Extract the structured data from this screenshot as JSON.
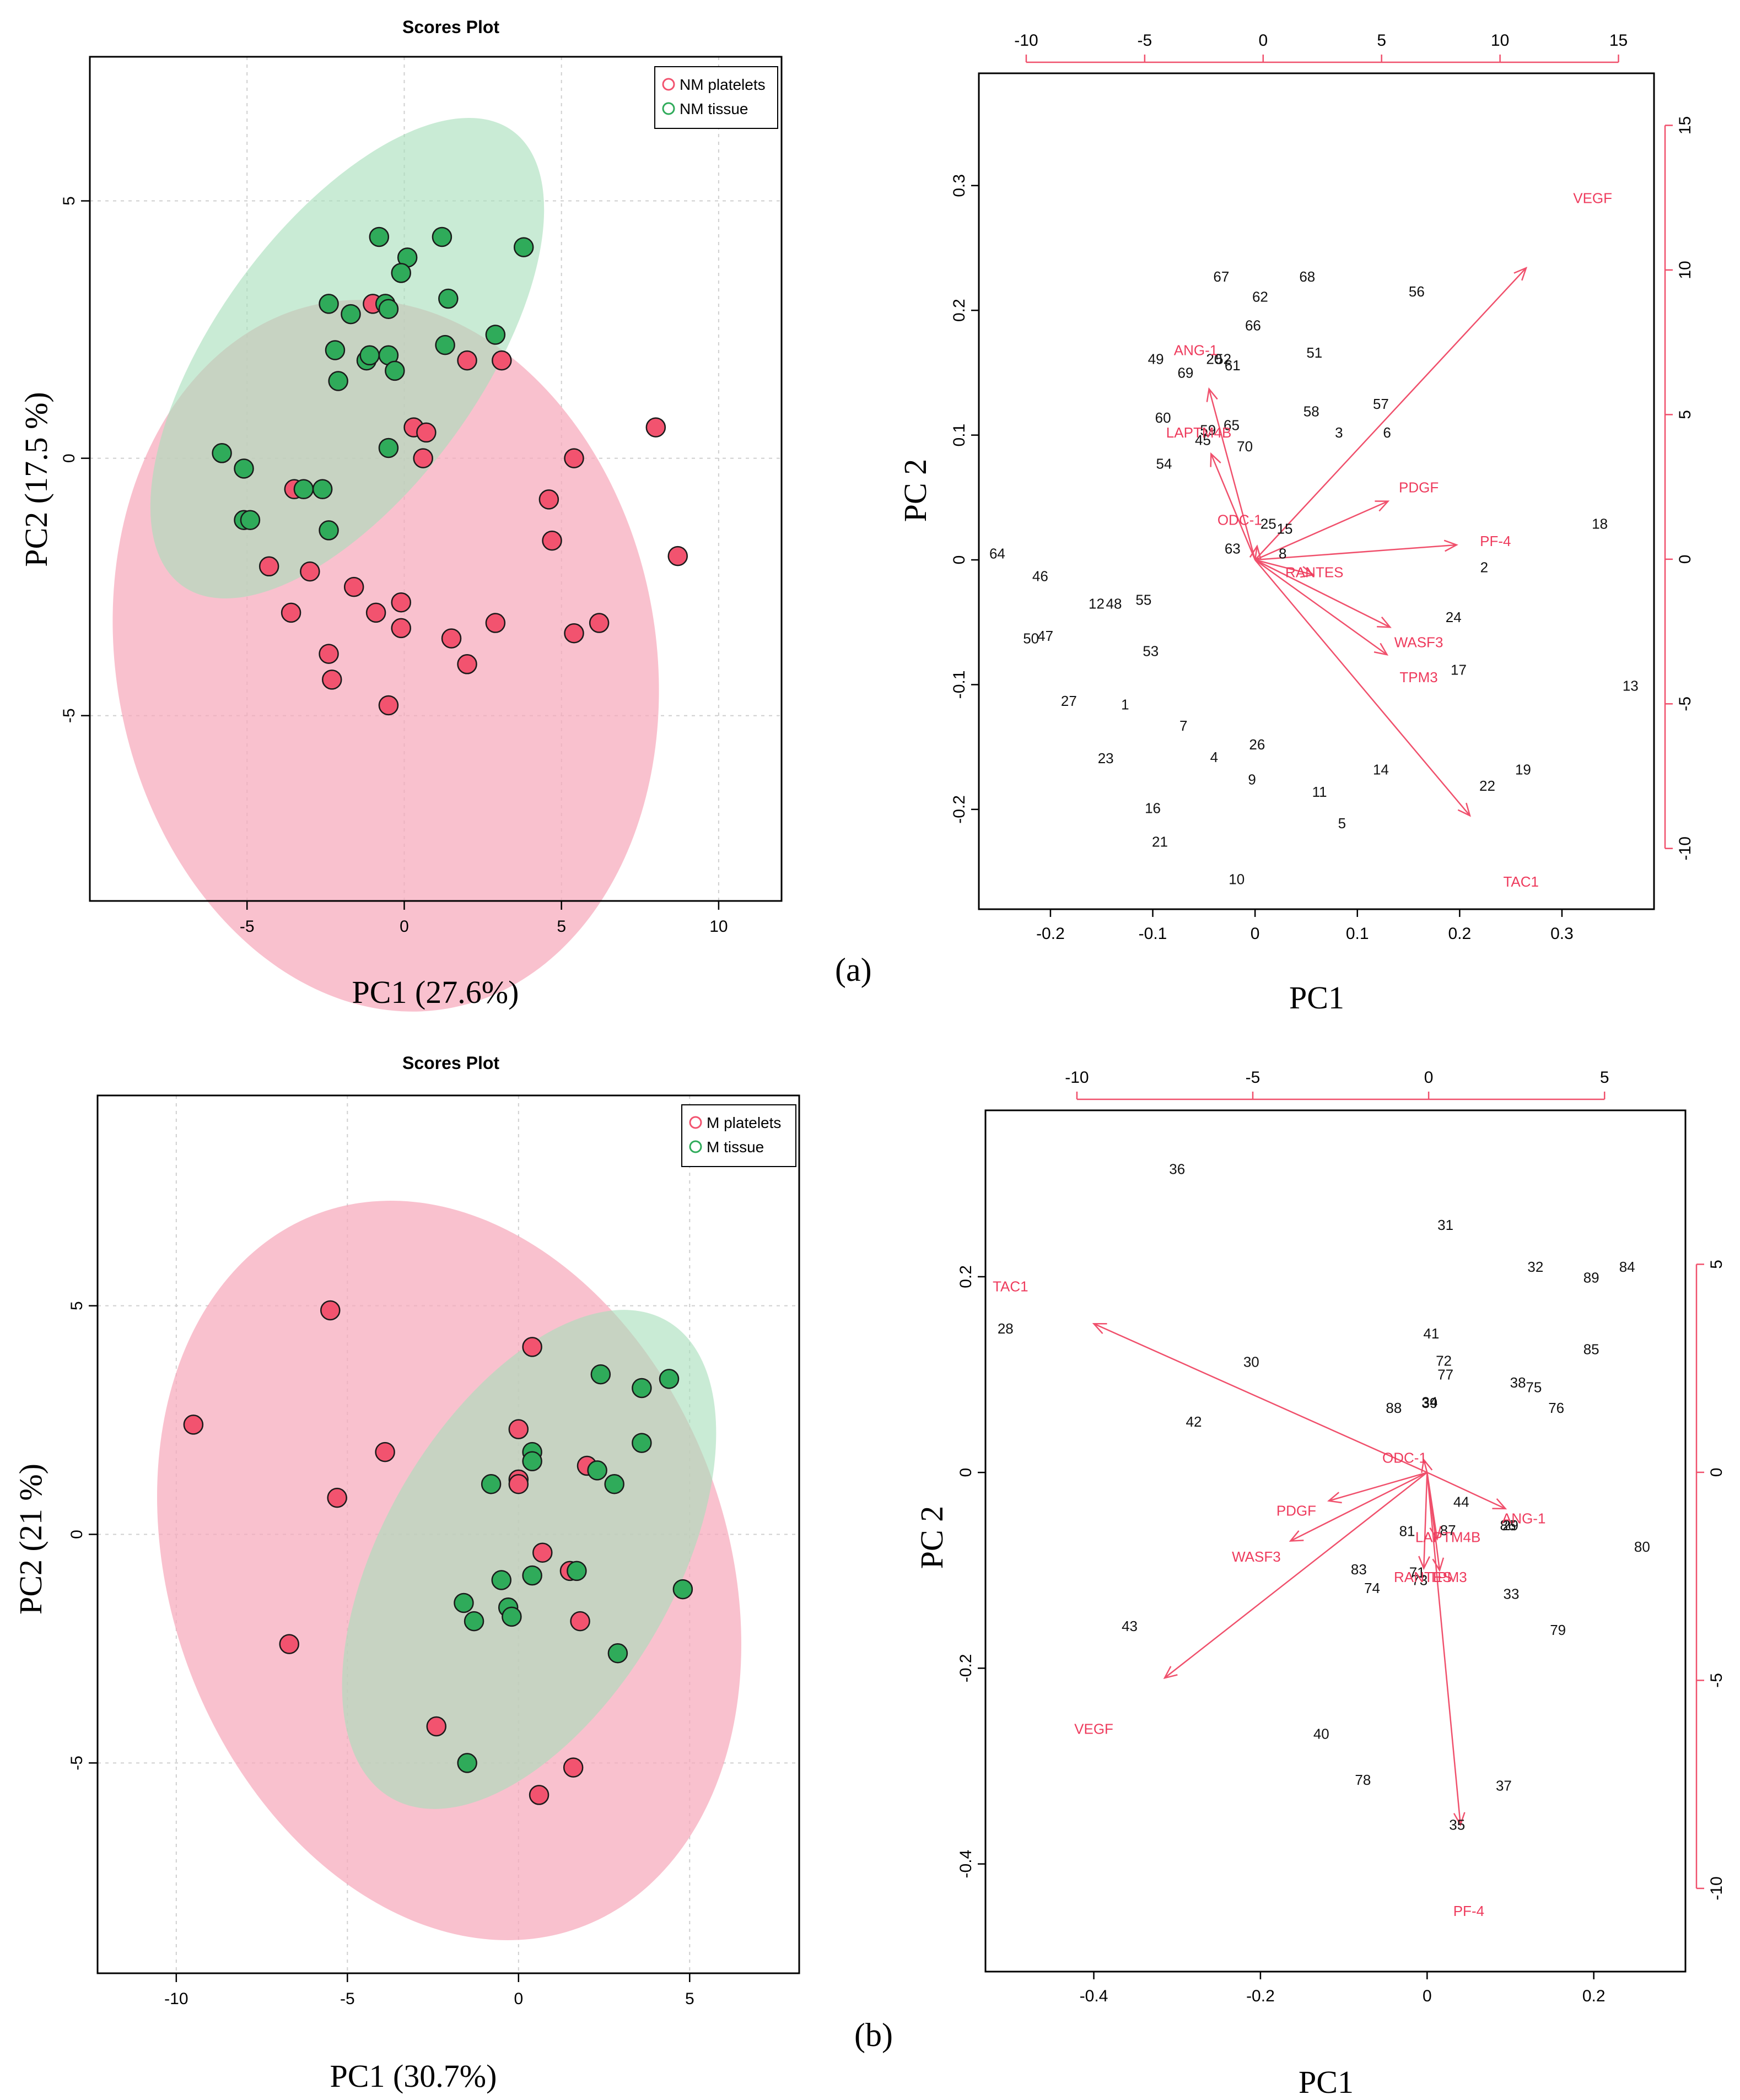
{
  "colors": {
    "platelets": "#f2536f",
    "tissue": "#2fab5a",
    "platelets_ellipse": "#f7a9bb",
    "tissue_ellipse": "#a8dfbb",
    "overlap": "#c9b6a6",
    "vector": "#f0506c"
  },
  "panel_labels": [
    "(a)",
    "(b)"
  ],
  "chart_data": [
    {
      "type": "scatter",
      "name": "scores-a",
      "title": "Scores Plot",
      "xlabel": "PC1 (27.6%)",
      "ylabel": "PC2 (17.5 %)",
      "xlim": [
        -10,
        12
      ],
      "ylim": [
        -8.6,
        7.8
      ],
      "xticks": [
        -5,
        0,
        5,
        10
      ],
      "yticks": [
        -5,
        0,
        5
      ],
      "grid": true,
      "legend_position": "top-right",
      "series": [
        {
          "name": "NM platelets",
          "color": "#f2536f",
          "points": [
            [
              -1,
              3
            ],
            [
              0.3,
              0.6
            ],
            [
              0.7,
              0.5
            ],
            [
              0.6,
              0
            ],
            [
              2,
              1.9
            ],
            [
              3.1,
              1.9
            ],
            [
              8,
              0.6
            ],
            [
              5.4,
              0
            ],
            [
              4.6,
              -0.8
            ],
            [
              4.7,
              -1.6
            ],
            [
              -3.5,
              -0.6
            ],
            [
              -4.3,
              -2.1
            ],
            [
              -3.6,
              -3
            ],
            [
              -3,
              -2.2
            ],
            [
              -1.6,
              -2.5
            ],
            [
              -0.1,
              -2.8
            ],
            [
              -0.9,
              -3
            ],
            [
              -0.1,
              -3.3
            ],
            [
              1.5,
              -3.5
            ],
            [
              2,
              -4
            ],
            [
              2.9,
              -3.2
            ],
            [
              5.4,
              -3.4
            ],
            [
              6.2,
              -3.2
            ],
            [
              8.7,
              -1.9
            ],
            [
              -2.4,
              -3.8
            ],
            [
              -2.3,
              -4.3
            ],
            [
              -0.5,
              -4.8
            ]
          ]
        },
        {
          "name": "NM tissue",
          "color": "#2fab5a",
          "points": [
            [
              -0.8,
              4.3
            ],
            [
              0.1,
              3.9
            ],
            [
              1.2,
              4.3
            ],
            [
              3.8,
              4.1
            ],
            [
              -0.1,
              3.6
            ],
            [
              -2.4,
              3
            ],
            [
              -1.7,
              2.8
            ],
            [
              -0.6,
              3
            ],
            [
              -0.5,
              2.9
            ],
            [
              1.4,
              3.1
            ],
            [
              -2.2,
              2.1
            ],
            [
              -1.2,
              1.9
            ],
            [
              -1.1,
              2
            ],
            [
              -0.5,
              2
            ],
            [
              -0.3,
              1.7
            ],
            [
              1.3,
              2.2
            ],
            [
              2.9,
              2.4
            ],
            [
              -2.1,
              1.5
            ],
            [
              -0.5,
              0.2
            ],
            [
              -5.8,
              0.1
            ],
            [
              -5.1,
              -0.2
            ],
            [
              -5.1,
              -1.2
            ],
            [
              -4.9,
              -1.2
            ],
            [
              -3.2,
              -0.6
            ],
            [
              -2.6,
              -0.6
            ],
            [
              -2.4,
              -1.4
            ]
          ]
        }
      ],
      "ellipses": [
        "NM platelets",
        "NM tissue"
      ]
    },
    {
      "type": "scatter",
      "name": "biplot-a",
      "title": "",
      "xlabel": "PC1",
      "ylabel": "PC 2",
      "xlim": [
        -0.27,
        0.39
      ],
      "ylim": [
        -0.28,
        0.39
      ],
      "xticks": [
        -0.2,
        -0.1,
        0.0,
        0.1,
        0.2,
        0.3
      ],
      "yticks": [
        -0.2,
        -0.1,
        0.0,
        0.1,
        0.2,
        0.3
      ],
      "top_xlim": [
        -12,
        16.5
      ],
      "top_xticks": [
        -10,
        -5,
        0,
        5,
        10,
        15
      ],
      "right_ylim": [
        -12.1,
        16.8
      ],
      "right_yticks": [
        -10,
        -5,
        0,
        5,
        10,
        15
      ],
      "observations": [
        {
          "label": "67",
          "x": -0.033,
          "y": 0.227
        },
        {
          "label": "62",
          "x": 0.005,
          "y": 0.211
        },
        {
          "label": "68",
          "x": 0.051,
          "y": 0.227
        },
        {
          "label": "66",
          "x": -0.002,
          "y": 0.188
        },
        {
          "label": "56",
          "x": 0.158,
          "y": 0.215
        },
        {
          "label": "49",
          "x": -0.097,
          "y": 0.161
        },
        {
          "label": "69",
          "x": -0.068,
          "y": 0.15
        },
        {
          "label": "20",
          "x": -0.04,
          "y": 0.161
        },
        {
          "label": "52",
          "x": -0.031,
          "y": 0.161
        },
        {
          "label": "61",
          "x": -0.022,
          "y": 0.156
        },
        {
          "label": "51",
          "x": 0.058,
          "y": 0.166
        },
        {
          "label": "57",
          "x": 0.123,
          "y": 0.125
        },
        {
          "label": "58",
          "x": 0.055,
          "y": 0.119
        },
        {
          "label": "3",
          "x": 0.082,
          "y": 0.102
        },
        {
          "label": "6",
          "x": 0.129,
          "y": 0.102
        },
        {
          "label": "60",
          "x": -0.09,
          "y": 0.114
        },
        {
          "label": "59",
          "x": -0.046,
          "y": 0.104
        },
        {
          "label": "65",
          "x": -0.023,
          "y": 0.108
        },
        {
          "label": "45",
          "x": -0.051,
          "y": 0.096
        },
        {
          "label": "70",
          "x": -0.01,
          "y": 0.091
        },
        {
          "label": "54",
          "x": -0.089,
          "y": 0.077
        },
        {
          "label": "25",
          "x": 0.013,
          "y": 0.029
        },
        {
          "label": "15",
          "x": 0.029,
          "y": 0.025
        },
        {
          "label": "63",
          "x": -0.022,
          "y": 0.009
        },
        {
          "label": "8",
          "x": 0.027,
          "y": 0.005
        },
        {
          "label": "18",
          "x": 0.337,
          "y": 0.029
        },
        {
          "label": "64",
          "x": -0.252,
          "y": 0.005
        },
        {
          "label": "46",
          "x": -0.21,
          "y": -0.013
        },
        {
          "label": "2",
          "x": 0.224,
          "y": -0.006
        },
        {
          "label": "12",
          "x": -0.155,
          "y": -0.035
        },
        {
          "label": "48",
          "x": -0.138,
          "y": -0.035
        },
        {
          "label": "55",
          "x": -0.109,
          "y": -0.032
        },
        {
          "label": "24",
          "x": 0.194,
          "y": -0.046
        },
        {
          "label": "50",
          "x": -0.219,
          "y": -0.063
        },
        {
          "label": "47",
          "x": -0.205,
          "y": -0.061
        },
        {
          "label": "53",
          "x": -0.102,
          "y": -0.073
        },
        {
          "label": "17",
          "x": 0.199,
          "y": -0.088
        },
        {
          "label": "13",
          "x": 0.367,
          "y": -0.101
        },
        {
          "label": "27",
          "x": -0.182,
          "y": -0.113
        },
        {
          "label": "1",
          "x": -0.127,
          "y": -0.116
        },
        {
          "label": "7",
          "x": -0.07,
          "y": -0.133
        },
        {
          "label": "26",
          "x": 0.002,
          "y": -0.148
        },
        {
          "label": "4",
          "x": -0.04,
          "y": -0.158
        },
        {
          "label": "23",
          "x": -0.146,
          "y": -0.159
        },
        {
          "label": "14",
          "x": 0.123,
          "y": -0.168
        },
        {
          "label": "19",
          "x": 0.262,
          "y": -0.168
        },
        {
          "label": "9",
          "x": -0.003,
          "y": -0.176
        },
        {
          "label": "22",
          "x": 0.227,
          "y": -0.181
        },
        {
          "label": "11",
          "x": 0.063,
          "y": -0.186
        },
        {
          "label": "16",
          "x": -0.1,
          "y": -0.199
        },
        {
          "label": "5",
          "x": 0.085,
          "y": -0.211
        },
        {
          "label": "21",
          "x": -0.093,
          "y": -0.226
        },
        {
          "label": "10",
          "x": -0.018,
          "y": -0.256
        }
      ],
      "loadings": [
        {
          "label": "VEGF",
          "x": 0.265,
          "y": 0.234,
          "tx": 0.33,
          "ty": 0.29
        },
        {
          "label": "ANG-1",
          "x": -0.045,
          "y": 0.137,
          "tx": -0.058,
          "ty": 0.168
        },
        {
          "label": "LAPTM4B",
          "x": -0.043,
          "y": 0.085,
          "tx": -0.055,
          "ty": 0.102
        },
        {
          "label": "ODC-1",
          "x": 0.002,
          "y": 0.011,
          "tx": -0.015,
          "ty": 0.032
        },
        {
          "label": "PDGF",
          "x": 0.13,
          "y": 0.047,
          "tx": 0.16,
          "ty": 0.058
        },
        {
          "label": "PF-4",
          "x": 0.197,
          "y": 0.012,
          "tx": 0.235,
          "ty": 0.015
        },
        {
          "label": "RANTES",
          "x": 0.057,
          "y": -0.012,
          "tx": 0.058,
          "ty": -0.01
        },
        {
          "label": "WASF3",
          "x": 0.132,
          "y": -0.054,
          "tx": 0.16,
          "ty": -0.066
        },
        {
          "label": "TPM3",
          "x": 0.129,
          "y": -0.076,
          "tx": 0.16,
          "ty": -0.094
        },
        {
          "label": "TAC1",
          "x": 0.21,
          "y": -0.205,
          "tx": 0.26,
          "ty": -0.258
        }
      ]
    },
    {
      "type": "scatter",
      "name": "scores-b",
      "title": "Scores Plot",
      "xlabel": "PC1 (30.7%)",
      "ylabel": "PC2 (21 %)",
      "xlim": [
        -12.3,
        8.2
      ],
      "ylim": [
        -9.6,
        9.6
      ],
      "xticks": [
        -10,
        -5,
        0,
        5
      ],
      "yticks": [
        -5,
        0,
        5
      ],
      "grid": true,
      "legend_position": "top-right",
      "series": [
        {
          "name": "M platelets",
          "color": "#f2536f",
          "points": [
            [
              -5.5,
              4.9
            ],
            [
              0.4,
              4.1
            ],
            [
              -9.5,
              2.4
            ],
            [
              -3.9,
              1.8
            ],
            [
              -5.3,
              0.8
            ],
            [
              0,
              2.3
            ],
            [
              0,
              1.2
            ],
            [
              0,
              1.1
            ],
            [
              2,
              1.5
            ],
            [
              0.7,
              -0.4
            ],
            [
              1.5,
              -0.8
            ],
            [
              1.8,
              -1.9
            ],
            [
              -6.7,
              -2.4
            ],
            [
              -2.4,
              -4.2
            ],
            [
              1.6,
              -5.1
            ],
            [
              0.6,
              -5.7
            ]
          ]
        },
        {
          "name": "M tissue",
          "color": "#2fab5a",
          "points": [
            [
              2.4,
              3.5
            ],
            [
              3.6,
              3.2
            ],
            [
              4.4,
              3.4
            ],
            [
              3.6,
              2
            ],
            [
              0.4,
              1.8
            ],
            [
              0.4,
              1.6
            ],
            [
              -0.8,
              1.1
            ],
            [
              2.3,
              1.4
            ],
            [
              2.8,
              1.1
            ],
            [
              0.4,
              -0.9
            ],
            [
              1.7,
              -0.8
            ],
            [
              -0.5,
              -1
            ],
            [
              -1.6,
              -1.5
            ],
            [
              -1.3,
              -1.9
            ],
            [
              -0.3,
              -1.6
            ],
            [
              -0.2,
              -1.8
            ],
            [
              4.8,
              -1.2
            ],
            [
              2.9,
              -2.6
            ],
            [
              -1.5,
              -5
            ]
          ]
        }
      ],
      "ellipses": [
        "M platelets",
        "M tissue"
      ]
    },
    {
      "type": "scatter",
      "name": "biplot-b",
      "title": "",
      "xlabel": "PC1",
      "ylabel": "PC 2",
      "xlim": [
        -0.53,
        0.31
      ],
      "ylim": [
        -0.51,
        0.37
      ],
      "xticks": [
        -0.4,
        -0.2,
        0.0,
        0.2
      ],
      "yticks": [
        -0.4,
        -0.2,
        0.0,
        0.2
      ],
      "top_xlim": [
        -12.6,
        7.3
      ],
      "top_xticks": [
        -10,
        -5,
        0,
        5
      ],
      "right_ylim": [
        -12.0,
        8.7
      ],
      "right_yticks": [
        -10,
        -5,
        0,
        5
      ],
      "observations": [
        {
          "label": "36",
          "x": -0.3,
          "y": 0.31
        },
        {
          "label": "31",
          "x": 0.022,
          "y": 0.253
        },
        {
          "label": "32",
          "x": 0.13,
          "y": 0.21
        },
        {
          "label": "89",
          "x": 0.197,
          "y": 0.199
        },
        {
          "label": "84",
          "x": 0.24,
          "y": 0.21
        },
        {
          "label": "28",
          "x": -0.506,
          "y": 0.147
        },
        {
          "label": "41",
          "x": 0.005,
          "y": 0.142
        },
        {
          "label": "85",
          "x": 0.197,
          "y": 0.126
        },
        {
          "label": "30",
          "x": -0.211,
          "y": 0.113
        },
        {
          "label": "72",
          "x": 0.02,
          "y": 0.114
        },
        {
          "label": "77",
          "x": 0.022,
          "y": 0.1
        },
        {
          "label": "38",
          "x": 0.109,
          "y": 0.092
        },
        {
          "label": "75",
          "x": 0.128,
          "y": 0.087
        },
        {
          "label": "39",
          "x": 0.003,
          "y": 0.071
        },
        {
          "label": "34",
          "x": 0.003,
          "y": 0.072
        },
        {
          "label": "88",
          "x": -0.04,
          "y": 0.066
        },
        {
          "label": "76",
          "x": 0.155,
          "y": 0.066
        },
        {
          "label": "42",
          "x": -0.28,
          "y": 0.052
        },
        {
          "label": "44",
          "x": 0.041,
          "y": -0.03
        },
        {
          "label": "29",
          "x": 0.1,
          "y": -0.054
        },
        {
          "label": "86",
          "x": 0.097,
          "y": -0.054
        },
        {
          "label": "81",
          "x": -0.024,
          "y": -0.06
        },
        {
          "label": "87",
          "x": 0.025,
          "y": -0.059
        },
        {
          "label": "80",
          "x": 0.258,
          "y": -0.076
        },
        {
          "label": "83",
          "x": -0.082,
          "y": -0.099
        },
        {
          "label": "71",
          "x": -0.012,
          "y": -0.102
        },
        {
          "label": "73",
          "x": -0.009,
          "y": -0.11
        },
        {
          "label": "74",
          "x": -0.066,
          "y": -0.118
        },
        {
          "label": "33",
          "x": 0.101,
          "y": -0.124
        },
        {
          "label": "43",
          "x": -0.357,
          "y": -0.157
        },
        {
          "label": "79",
          "x": 0.157,
          "y": -0.161
        },
        {
          "label": "40",
          "x": -0.127,
          "y": -0.267
        },
        {
          "label": "78",
          "x": -0.077,
          "y": -0.314
        },
        {
          "label": "37",
          "x": 0.092,
          "y": -0.32
        },
        {
          "label": "35",
          "x": 0.036,
          "y": -0.36
        }
      ],
      "loadings": [
        {
          "label": "TAC1",
          "x": -0.4,
          "y": 0.152,
          "tx": -0.5,
          "ty": 0.19
        },
        {
          "label": "ODC-1",
          "x": -0.004,
          "y": 0.013,
          "tx": -0.027,
          "ty": 0.015
        },
        {
          "label": "ANG-1",
          "x": 0.094,
          "y": -0.037,
          "tx": 0.116,
          "ty": -0.047
        },
        {
          "label": "PDGF",
          "x": -0.118,
          "y": -0.029,
          "tx": -0.157,
          "ty": -0.039
        },
        {
          "label": "LAPTM4B",
          "x": 0.012,
          "y": -0.068,
          "tx": 0.025,
          "ty": -0.066
        },
        {
          "label": "WASF3",
          "x": -0.164,
          "y": -0.07,
          "tx": -0.205,
          "ty": -0.086
        },
        {
          "label": "RANTES",
          "x": -0.004,
          "y": -0.098,
          "tx": -0.005,
          "ty": -0.107
        },
        {
          "label": "TPM3",
          "x": 0.015,
          "y": -0.1,
          "tx": 0.025,
          "ty": -0.107
        },
        {
          "label": "VEGF",
          "x": -0.315,
          "y": -0.21,
          "tx": -0.4,
          "ty": -0.262
        },
        {
          "label": "PF-4",
          "x": 0.04,
          "y": -0.36,
          "tx": 0.05,
          "ty": -0.448
        }
      ]
    }
  ]
}
